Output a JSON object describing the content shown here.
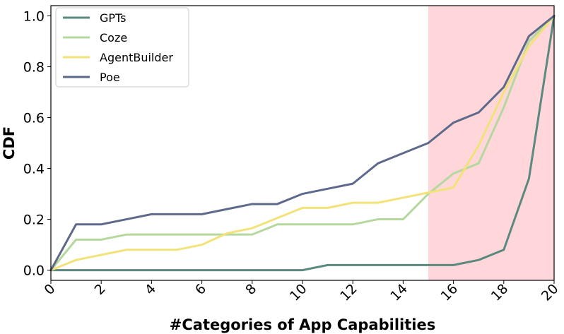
{
  "chart_data": {
    "type": "line",
    "title": "",
    "xlabel": "#Categories of App Capabilities",
    "ylabel": "CDF",
    "xlim": [
      0,
      20
    ],
    "ylim": [
      -0.04,
      1.04
    ],
    "xticks": [
      0,
      2,
      4,
      6,
      8,
      10,
      12,
      14,
      16,
      18,
      20
    ],
    "yticks": [
      0.0,
      0.2,
      0.4,
      0.6,
      0.8,
      1.0
    ],
    "ytick_labels": [
      "0.0",
      "0.2",
      "0.4",
      "0.6",
      "0.8",
      "1.0"
    ],
    "grid": false,
    "legend": "top-left",
    "highlight": {
      "x_range": [
        15,
        20
      ],
      "color": "#ffd6da"
    },
    "x": [
      0,
      1,
      2,
      3,
      4,
      5,
      6,
      7,
      8,
      9,
      10,
      11,
      12,
      13,
      14,
      15,
      16,
      17,
      18,
      19,
      20
    ],
    "series": [
      {
        "name": "GPTs",
        "color": "#5a8a7f",
        "values": [
          0,
          0,
          0,
          0,
          0,
          0,
          0,
          0,
          0,
          0,
          0,
          0.02,
          0.02,
          0.02,
          0.02,
          0.02,
          0.02,
          0.04,
          0.08,
          0.36,
          1.0
        ]
      },
      {
        "name": "Coze",
        "color": "#b5d89f",
        "values": [
          0,
          0.12,
          0.12,
          0.14,
          0.14,
          0.14,
          0.14,
          0.14,
          0.14,
          0.18,
          0.18,
          0.18,
          0.18,
          0.2,
          0.2,
          0.3,
          0.38,
          0.42,
          0.64,
          0.9,
          1.0
        ]
      },
      {
        "name": "AgentBuilder",
        "color": "#f2e27a",
        "values": [
          0,
          0.04,
          0.06,
          0.08,
          0.08,
          0.08,
          0.1,
          0.145,
          0.165,
          0.205,
          0.245,
          0.245,
          0.265,
          0.265,
          0.285,
          0.305,
          0.325,
          0.49,
          0.7,
          0.88,
          1.0
        ]
      },
      {
        "name": "Poe",
        "color": "#5e6a8a",
        "values": [
          0,
          0.18,
          0.18,
          0.2,
          0.22,
          0.22,
          0.22,
          0.24,
          0.26,
          0.26,
          0.3,
          0.32,
          0.34,
          0.42,
          0.46,
          0.5,
          0.58,
          0.62,
          0.72,
          0.92,
          1.0
        ]
      }
    ]
  }
}
